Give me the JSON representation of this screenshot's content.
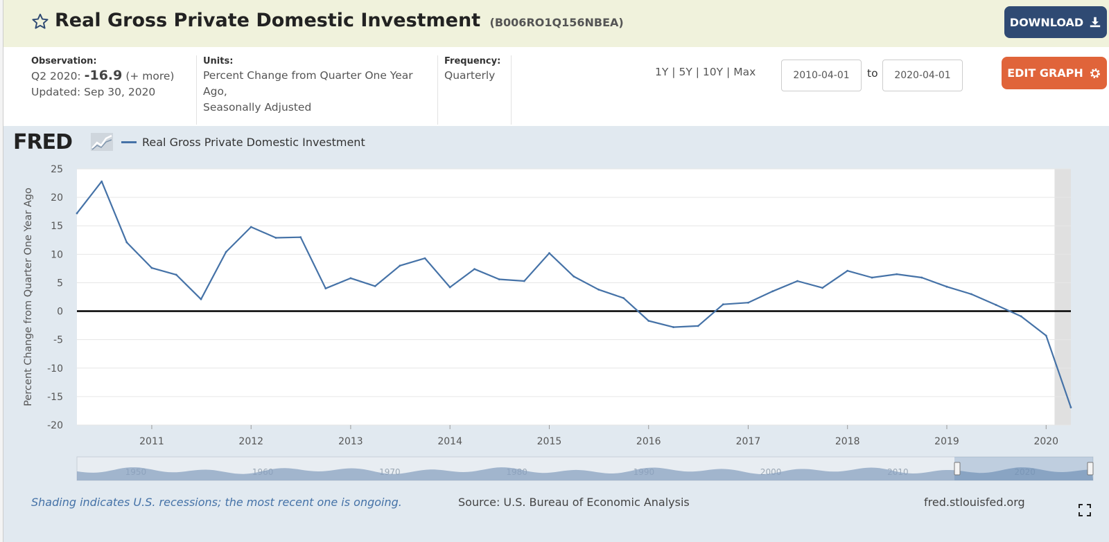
{
  "header": {
    "title": "Real Gross Private Domestic Investment",
    "series_id": "(B006RO1Q156NBEA)",
    "download_label": "DOWNLOAD"
  },
  "info": {
    "observation_label": "Observation:",
    "observation_period": "Q2 2020:",
    "observation_value": "-16.9",
    "observation_more": "(+ more)",
    "updated": "Updated: Sep 30, 2020",
    "units_label": "Units:",
    "units_line1": "Percent Change from Quarter One Year",
    "units_line2": "Ago,",
    "units_line3": "Seasonally Adjusted",
    "frequency_label": "Frequency:",
    "frequency_value": "Quarterly",
    "range_1y": "1Y",
    "range_5y": "5Y",
    "range_10y": "10Y",
    "range_max": "Max",
    "range_sep": "|",
    "date_from": "2010-04-01",
    "to_label": "to",
    "date_to": "2020-04-01",
    "edit_label": "EDIT GRAPH"
  },
  "brand": {
    "logo_text": "FRED"
  },
  "chart_data": {
    "type": "line",
    "title": "",
    "legend_position": "top-left",
    "xlabel": "",
    "ylabel": "Percent Change from Quarter One Year Ago",
    "ylim": [
      -20,
      25
    ],
    "yticks": [
      25,
      20,
      15,
      10,
      5,
      0,
      -5,
      -10,
      -15,
      -20
    ],
    "xlim": [
      "2010-04-01",
      "2020-04-01"
    ],
    "xticks": [
      "2011",
      "2012",
      "2013",
      "2014",
      "2015",
      "2016",
      "2017",
      "2018",
      "2019",
      "2020"
    ],
    "grid": true,
    "zero_line": true,
    "series": [
      {
        "name": "Real Gross Private Domestic Investment",
        "color": "#4572a7",
        "x": [
          "2010-04-01",
          "2010-07-01",
          "2010-10-01",
          "2011-01-01",
          "2011-04-01",
          "2011-07-01",
          "2011-10-01",
          "2012-01-01",
          "2012-04-01",
          "2012-07-01",
          "2012-10-01",
          "2013-01-01",
          "2013-04-01",
          "2013-07-01",
          "2013-10-01",
          "2014-01-01",
          "2014-04-01",
          "2014-07-01",
          "2014-10-01",
          "2015-01-01",
          "2015-04-01",
          "2015-07-01",
          "2015-10-01",
          "2016-01-01",
          "2016-04-01",
          "2016-07-01",
          "2016-10-01",
          "2017-01-01",
          "2017-04-01",
          "2017-07-01",
          "2017-10-01",
          "2018-01-01",
          "2018-04-01",
          "2018-07-01",
          "2018-10-01",
          "2019-01-01",
          "2019-04-01",
          "2019-07-01",
          "2019-10-01",
          "2020-01-01",
          "2020-04-01"
        ],
        "values": [
          17.2,
          22.8,
          12.1,
          7.6,
          6.4,
          2.1,
          10.4,
          14.8,
          12.9,
          13.0,
          4.0,
          5.8,
          4.4,
          8.0,
          9.3,
          4.2,
          7.4,
          5.6,
          5.3,
          10.2,
          6.1,
          3.8,
          2.3,
          -1.7,
          -2.8,
          -2.6,
          1.2,
          1.5,
          3.5,
          5.3,
          4.1,
          7.1,
          5.9,
          6.5,
          5.9,
          4.3,
          3.0,
          1.1,
          -0.9,
          -4.3,
          -16.9
        ]
      }
    ],
    "recession_shading": [
      [
        "2020-02-01",
        "2020-04-01"
      ]
    ]
  },
  "navigator": {
    "labels": [
      "1950",
      "1960",
      "1970",
      "1980",
      "1990",
      "2000",
      "2010",
      "2020"
    ]
  },
  "footer": {
    "note": "Shading indicates U.S. recessions; the most recent one is ongoing.",
    "source": "Source: U.S. Bureau of Economic Analysis",
    "site": "fred.stlouisfed.org"
  },
  "icons": {
    "star": "star-icon",
    "download": "download-icon",
    "gear": "gear-icon",
    "fullscreen": "fullscreen-icon"
  },
  "colors": {
    "title_bar": "#f0f2dc",
    "download_button": "#2f4a73",
    "edit_button": "#e0643a",
    "chart_panel": "#e1e9f0",
    "series": "#4572a7",
    "recession": "#e0e0e0"
  }
}
